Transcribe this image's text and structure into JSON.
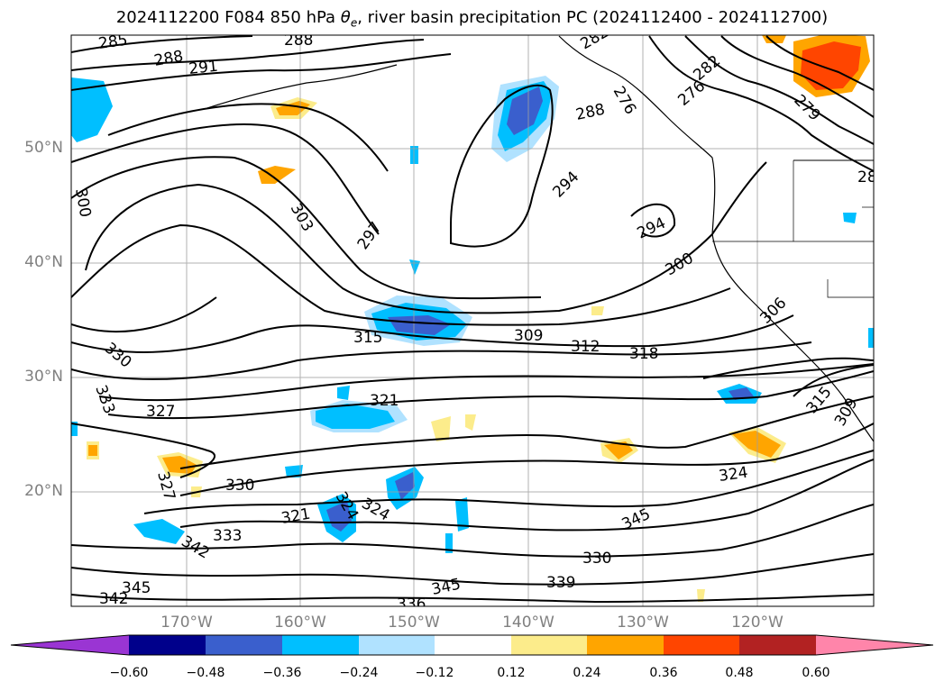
{
  "title": {
    "prefix": "2024112200 F084 850 hPa ",
    "theta": "θ",
    "sub": "e",
    "suffix": ", river basin precipitation PC (2024112400 - 2024112700)"
  },
  "map": {
    "lat_labels": [
      "50°N",
      "40°N",
      "30°N",
      "20°N"
    ],
    "lon_labels": [
      "170°W",
      "160°W",
      "150°W",
      "140°W",
      "130°W",
      "120°W"
    ],
    "contour_labels": [
      "285",
      "288",
      "291",
      "288",
      "282",
      "276",
      "282",
      "276",
      "279",
      "288",
      "28",
      "300",
      "303",
      "297",
      "294",
      "294",
      "300",
      "306",
      "315",
      "309",
      "312",
      "318",
      "330",
      "333",
      "327",
      "321",
      "315",
      "309",
      "324",
      "327",
      "330",
      "324",
      "321",
      "324",
      "333",
      "342",
      "345",
      "342",
      "336",
      "345",
      "339",
      "330",
      "345"
    ]
  },
  "colorbar": {
    "colors": [
      "#9a35d3",
      "#00008b",
      "#3a5fcd",
      "#00bfff",
      "#b0e2ff",
      "#ffffff",
      "#fcec8b",
      "#ffa500",
      "#ff4500",
      "#b22222",
      "#ff85aa"
    ],
    "ticks": [
      "−0.60",
      "−0.48",
      "−0.36",
      "−0.24",
      "−0.12",
      "0.12",
      "0.24",
      "0.36",
      "0.48",
      "0.60"
    ]
  }
}
